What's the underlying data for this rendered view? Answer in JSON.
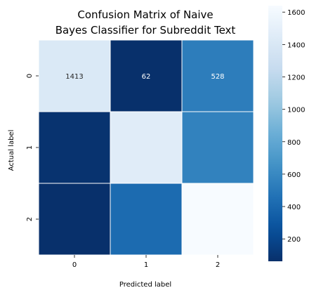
{
  "chart_data": {
    "type": "heatmap",
    "title_line1": "Confusion Matrix of Naive",
    "title_line2": "Bayes Classifier for Subreddit Text",
    "xlabel": "Predicted label",
    "ylabel": "Actual label",
    "x_categories": [
      "0",
      "1",
      "2"
    ],
    "y_categories": [
      "0",
      "1",
      "2"
    ],
    "values": [
      [
        1413,
        62,
        528
      ],
      [
        80,
        1460,
        560
      ],
      [
        60,
        420,
        1640
      ]
    ],
    "cell_labels": [
      [
        "1413",
        "62",
        "528"
      ],
      [
        "",
        "",
        ""
      ],
      [
        "",
        "",
        ""
      ]
    ],
    "colormap": "Blues_r",
    "vmin": 62,
    "vmax": 1640,
    "colorbar_ticks": [
      200,
      400,
      600,
      800,
      1000,
      1200,
      1400,
      1600
    ],
    "grid": false,
    "colors": {
      "cell_border": "#ffffff"
    }
  }
}
